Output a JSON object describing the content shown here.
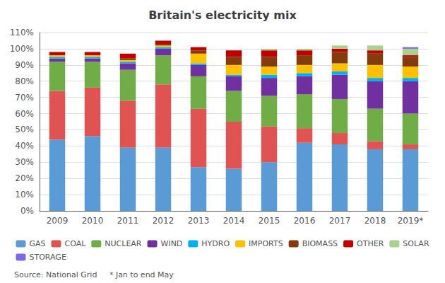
{
  "chart_data": {
    "type": "bar",
    "title": "Britain's electricity mix",
    "stacked": true,
    "grid": true,
    "legend": "bottom",
    "annotations": [
      "Source: National Grid     * Jan to end May"
    ],
    "categories": [
      "2009",
      "2010",
      "2011",
      "2012",
      "2013",
      "2014",
      "2015",
      "2016",
      "2017",
      "2018",
      "2019*"
    ],
    "series": [
      {
        "name": "GAS",
        "color": "#5b9bd5",
        "values": [
          44,
          46,
          39,
          39,
          27,
          26,
          30,
          42,
          41,
          38,
          38
        ]
      },
      {
        "name": "COAL",
        "color": "#e05353",
        "values": [
          30,
          30,
          29,
          39,
          36,
          29,
          22,
          9,
          7,
          5,
          3
        ]
      },
      {
        "name": "NUCLEAR",
        "color": "#70ad47",
        "values": [
          18,
          16,
          19,
          18,
          20,
          19,
          19,
          21,
          21,
          20,
          19
        ]
      },
      {
        "name": "WIND",
        "color": "#7030a0",
        "values": [
          2,
          2,
          4,
          4,
          7,
          9,
          11,
          11,
          15,
          17,
          20
        ]
      },
      {
        "name": "HYDRO",
        "color": "#00b0f0",
        "values": [
          1,
          1,
          1,
          1,
          1,
          1,
          2,
          2,
          2,
          2,
          2
        ]
      },
      {
        "name": "IMPORTS",
        "color": "#ffc000",
        "values": [
          1,
          1,
          1,
          1,
          6,
          6,
          5,
          5,
          5,
          8,
          7
        ]
      },
      {
        "name": "BIOMASS",
        "color": "#843c0c",
        "values": [
          0,
          0,
          1,
          1,
          2,
          5,
          6,
          6,
          7,
          7,
          6
        ]
      },
      {
        "name": "OTHER",
        "color": "#c00000",
        "values": [
          2,
          2,
          3,
          2,
          2,
          4,
          4,
          3,
          2,
          2,
          1
        ]
      },
      {
        "name": "SOLAR",
        "color": "#a9d18e",
        "values": [
          0,
          0,
          0,
          0,
          0,
          0,
          1,
          1,
          2,
          3,
          4
        ]
      },
      {
        "name": "STORAGE",
        "color": "#7b68ee",
        "values": [
          0,
          0,
          0,
          0,
          0,
          0,
          0,
          0,
          0,
          0,
          1
        ]
      }
    ],
    "ylim": [
      0,
      110
    ],
    "yticks": [
      {
        "value": 0,
        "label": "0%"
      },
      {
        "value": 10,
        "label": "10%"
      },
      {
        "value": 20,
        "label": "20%"
      },
      {
        "value": 30,
        "label": "30%"
      },
      {
        "value": 40,
        "label": "40%"
      },
      {
        "value": 50,
        "label": "50%"
      },
      {
        "value": 60,
        "label": "60%"
      },
      {
        "value": 70,
        "label": "70%"
      },
      {
        "value": 80,
        "label": "80%"
      },
      {
        "value": 90,
        "label": "90%"
      },
      {
        "value": 100,
        "label": "100%"
      },
      {
        "value": 110,
        "label": "110%"
      }
    ]
  }
}
